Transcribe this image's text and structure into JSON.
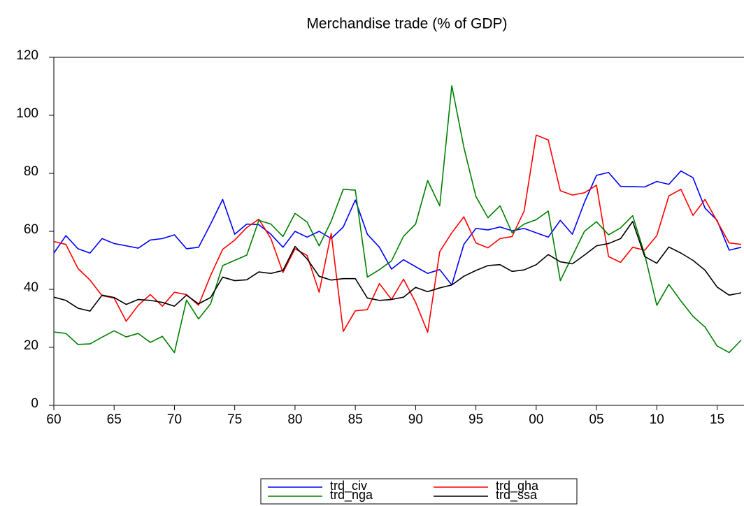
{
  "chart_data": {
    "type": "line",
    "title": "Merchandise trade (% of GDP)",
    "x": [
      1960,
      1961,
      1962,
      1963,
      1964,
      1965,
      1966,
      1967,
      1968,
      1969,
      1970,
      1971,
      1972,
      1973,
      1974,
      1975,
      1976,
      1977,
      1978,
      1979,
      1980,
      1981,
      1982,
      1983,
      1984,
      1985,
      1986,
      1987,
      1988,
      1989,
      1990,
      1991,
      1992,
      1993,
      1994,
      1995,
      1996,
      1997,
      1998,
      1999,
      2000,
      2001,
      2002,
      2003,
      2004,
      2005,
      2006,
      2007,
      2008,
      2009,
      2010,
      2011,
      2012,
      2013,
      2014,
      2015,
      2016,
      2017
    ],
    "series": [
      {
        "name": "trd_civ",
        "color": "#0000ff",
        "values": [
          52.5,
          58.5,
          54,
          52.5,
          57.5,
          55.8,
          55,
          54.2,
          57,
          57.5,
          58.8,
          54,
          54.5,
          62.5,
          71,
          59,
          62.5,
          62.3,
          59,
          54.5,
          60,
          58,
          60,
          57.5,
          61.5,
          70.8,
          59,
          54.5,
          47,
          50.2,
          47.8,
          45.5,
          46.8,
          41.5,
          55.5,
          61,
          60.5,
          61.5,
          60.2,
          61,
          59.5,
          58,
          63.8,
          59,
          70,
          79.3,
          80.3,
          75.5,
          75.4,
          75.3,
          77.2,
          76.2,
          80.8,
          78.5,
          68,
          63.8,
          53.5,
          54.5
        ]
      },
      {
        "name": "trd_gha",
        "color": "#ff0000",
        "values": [
          56.5,
          55.5,
          47.2,
          43.2,
          37.8,
          37,
          29,
          34.5,
          38.2,
          34.2,
          39,
          38.2,
          34.5,
          44.8,
          53.8,
          57,
          61.3,
          64.2,
          57.5,
          45.8,
          54,
          51.7,
          39,
          59.3,
          25.5,
          32.6,
          33,
          42,
          36.5,
          43.5,
          35.5,
          25.2,
          53,
          59.5,
          65,
          56,
          54.3,
          57.5,
          58.2,
          67,
          93.2,
          91.5,
          74,
          72.5,
          73.3,
          75.9,
          51.3,
          49.3,
          54.5,
          53.5,
          58.5,
          72.2,
          74.5,
          65.5,
          71,
          63.5,
          56,
          55.5
        ]
      },
      {
        "name": "trd_nga",
        "color": "#008000",
        "values": [
          25.3,
          24.8,
          21,
          21.2,
          23.5,
          25.7,
          23.6,
          24.8,
          21.7,
          23.8,
          18.2,
          36.3,
          29.8,
          35,
          48.2,
          50,
          51.8,
          63.8,
          62.5,
          58.2,
          66.2,
          63.2,
          55,
          63.5,
          74.5,
          74.2,
          44.2,
          46.8,
          49.8,
          58.3,
          62.5,
          77.5,
          68.8,
          110.2,
          89,
          72,
          64.7,
          68.8,
          59.5,
          62.5,
          64,
          67,
          43,
          51.5,
          60,
          63.3,
          58.8,
          61.2,
          65.4,
          52,
          34.5,
          41.7,
          36,
          30.7,
          27,
          20.5,
          18.2,
          22.5
        ]
      },
      {
        "name": "trd_ssa",
        "color": "#000000",
        "values": [
          37.3,
          36.2,
          33.5,
          32.5,
          38,
          37.2,
          34.8,
          36.5,
          36.2,
          35.5,
          34.2,
          38,
          35,
          37.2,
          44.2,
          43,
          43.3,
          46,
          45.5,
          46.5,
          54.8,
          50.5,
          44.5,
          43.2,
          43.7,
          43.7,
          37,
          36.2,
          36.5,
          37.3,
          40.7,
          39.2,
          40.5,
          41.5,
          44.5,
          46.5,
          48.2,
          48.5,
          46.2,
          46.7,
          48.5,
          52,
          49.5,
          48.8,
          51.8,
          55,
          55.8,
          57.5,
          63.4,
          51.3,
          49,
          54.6,
          52.5,
          50,
          46.6,
          40.8,
          38,
          38.8
        ]
      }
    ],
    "xlim": [
      1960,
      2017
    ],
    "xticks": [
      {
        "value": 1960,
        "label": "60"
      },
      {
        "value": 1965,
        "label": "65"
      },
      {
        "value": 1970,
        "label": "70"
      },
      {
        "value": 1975,
        "label": "75"
      },
      {
        "value": 1980,
        "label": "80"
      },
      {
        "value": 1985,
        "label": "85"
      },
      {
        "value": 1990,
        "label": "90"
      },
      {
        "value": 1995,
        "label": "95"
      },
      {
        "value": 2000,
        "label": "00"
      },
      {
        "value": 2005,
        "label": "05"
      },
      {
        "value": 2010,
        "label": "10"
      },
      {
        "value": 2015,
        "label": "15"
      }
    ],
    "ylim": [
      0,
      120
    ],
    "yticks": [
      0,
      20,
      40,
      60,
      80,
      100,
      120
    ],
    "grid": false
  }
}
